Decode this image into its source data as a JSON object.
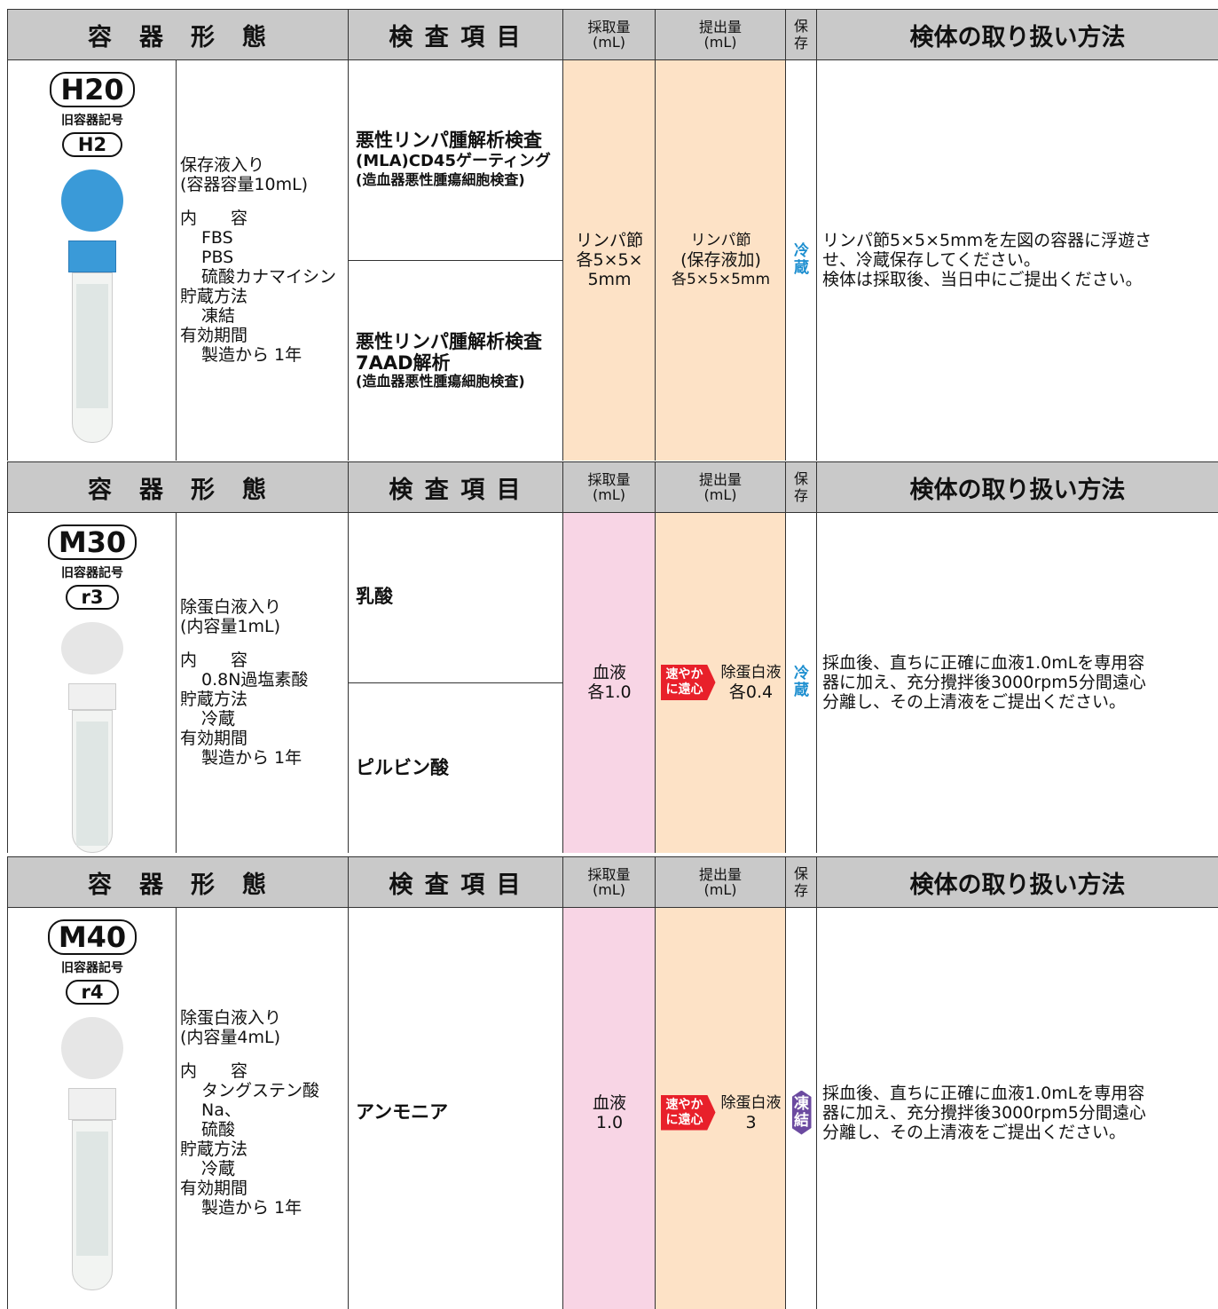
{
  "sections": [
    {
      "header": {
        "container": "容　器　形　態",
        "test": "検 査 項 目",
        "collect": [
          "採取量",
          "(mL)"
        ],
        "submit": [
          "提出量",
          "(mL)"
        ],
        "store": "保存",
        "method": "検体の取り扱い方法"
      },
      "code": "H20",
      "old_label": "旧容器記号",
      "old_code": "H2",
      "description": {
        "title": [
          "保存液入り",
          "(容器容量10mL)"
        ],
        "items": [
          {
            "label": "内　　容",
            "values": [
              "FBS",
              "PBS",
              "硫酸カナマイシン"
            ]
          },
          {
            "label": "貯蔵方法",
            "values": [
              "凍結"
            ]
          },
          {
            "label": "有効期間",
            "values": [
              "製造から 1年"
            ]
          }
        ]
      },
      "tests": [
        [
          "悪性リンパ腫解析検査",
          "(MLA)CD45ゲーティング",
          "(造血器悪性腫瘍細胞検査)"
        ],
        [
          "悪性リンパ腫解析検査",
          "7AAD解析",
          "(造血器悪性腫瘍細胞検査)"
        ]
      ],
      "collect": [
        "リンパ節",
        "各5×5×",
        "5mm"
      ],
      "submit": [
        "リンパ節",
        "(保存液加)",
        "各5×5×5mm"
      ],
      "storage": "冷蔵",
      "handling": [
        "リンパ節5×5×5mmを左図の容器に浮遊さ",
        "せ、冷蔵保存してください。",
        "検体は採取後、当日中にご提出ください。"
      ]
    },
    {
      "header": {
        "container": "容　器　形　態",
        "test": "検 査 項 目",
        "collect": [
          "採取量",
          "(mL)"
        ],
        "submit": [
          "提出量",
          "(mL)"
        ],
        "store": "保存",
        "method": "検体の取り扱い方法"
      },
      "code": "M30",
      "old_label": "旧容器記号",
      "old_code": "r3",
      "description": {
        "title": [
          "除蛋白液入り",
          "(内容量1mL)"
        ],
        "items": [
          {
            "label": "内　　容",
            "values": [
              "0.8N過塩素酸"
            ]
          },
          {
            "label": "貯蔵方法",
            "values": [
              "冷蔵"
            ]
          },
          {
            "label": "有効期間",
            "values": [
              "製造から 1年"
            ]
          }
        ]
      },
      "tests": [
        [
          "乳酸"
        ],
        [
          "ピルビン酸"
        ]
      ],
      "collect": [
        "血液",
        "各1.0"
      ],
      "badge": [
        "速やか",
        "に遠心"
      ],
      "submit": [
        "除蛋白液",
        "各0.4"
      ],
      "storage": "冷蔵",
      "handling": [
        "採血後、直ちに正確に血液1.0mLを専用容",
        "器に加え、充分攪拌後3000rpm5分間遠心",
        "分離し、その上清液をご提出ください。"
      ]
    },
    {
      "header": {
        "container": "容　器　形　態",
        "test": "検 査 項 目",
        "collect": [
          "採取量",
          "(mL)"
        ],
        "submit": [
          "提出量",
          "(mL)"
        ],
        "store": "保存",
        "method": "検体の取り扱い方法"
      },
      "code": "M40",
      "old_label": "旧容器記号",
      "old_code": "r4",
      "description": {
        "title": [
          "除蛋白液入り",
          "(内容量4mL)"
        ],
        "items": [
          {
            "label": "内　　容",
            "values": [
              "タングステン酸Na、",
              "硫酸"
            ]
          },
          {
            "label": "貯蔵方法",
            "values": [
              "冷蔵"
            ]
          },
          {
            "label": "有効期間",
            "values": [
              "製造から 1年"
            ]
          }
        ]
      },
      "tests": [
        [
          "アンモニア"
        ]
      ],
      "collect": [
        "血液",
        "1.0"
      ],
      "badge": [
        "速やか",
        "に遠心"
      ],
      "submit": [
        "除蛋白液",
        "3"
      ],
      "storage": "凍結",
      "handling": [
        "採血後、直ちに正確に血液1.0mLを専用容",
        "器に加え、充分攪拌後3000rpm5分間遠心",
        "分離し、その上清液をご提出ください。"
      ]
    }
  ]
}
